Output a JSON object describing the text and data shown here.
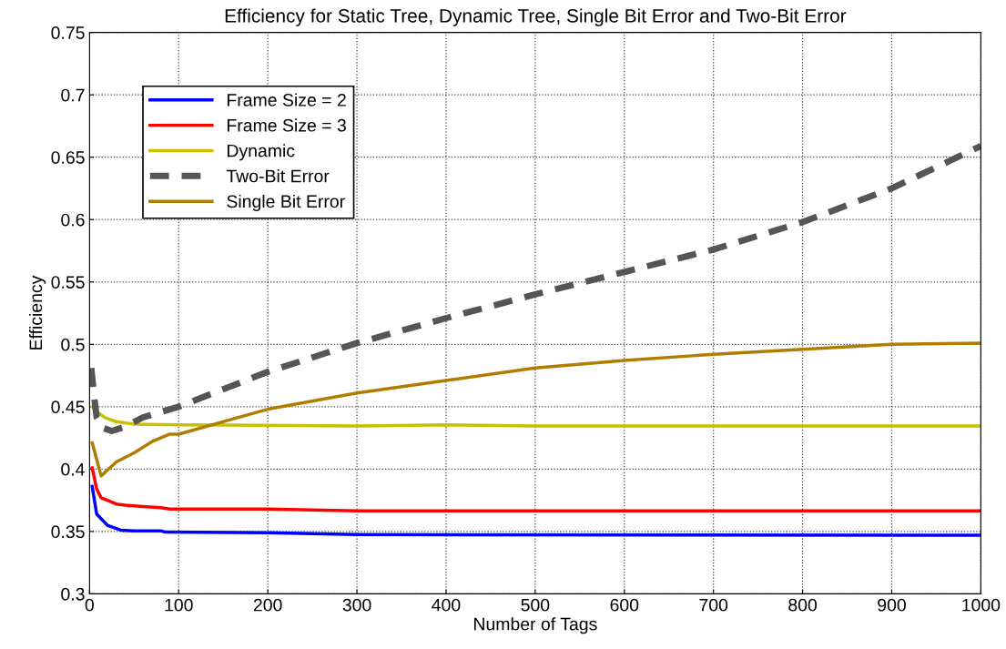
{
  "chart_data": {
    "type": "line",
    "title": "Efficiency for Static Tree, Dynamic Tree, Single Bit Error and Two-Bit Error",
    "xlabel": "Number of Tags",
    "ylabel": "Efficiency",
    "xlim": [
      0,
      1000
    ],
    "ylim": [
      0.3,
      0.75
    ],
    "xticks": [
      0,
      100,
      200,
      300,
      400,
      500,
      600,
      700,
      800,
      900,
      1000
    ],
    "yticks": [
      0.3,
      0.35,
      0.4,
      0.45,
      0.5,
      0.55,
      0.6,
      0.65,
      0.7,
      0.75
    ],
    "grid": true,
    "legend": "top left",
    "series": [
      {
        "name": "Frame Size = 2",
        "color": "#0000ff",
        "line_style": "solid",
        "x": [
          3,
          8,
          20,
          35,
          50,
          80,
          85,
          200,
          300,
          1000
        ],
        "values": [
          0.386,
          0.364,
          0.355,
          0.351,
          0.3505,
          0.3505,
          0.3495,
          0.349,
          0.3475,
          0.347
        ]
      },
      {
        "name": "Frame Size = 3",
        "color": "#ff0000",
        "line_style": "solid",
        "x": [
          3,
          8,
          13,
          20,
          30,
          40,
          60,
          80,
          90,
          200,
          300,
          1000
        ],
        "values": [
          0.401,
          0.384,
          0.377,
          0.375,
          0.372,
          0.371,
          0.37,
          0.369,
          0.368,
          0.368,
          0.3665,
          0.3665
        ]
      },
      {
        "name": "Dynamic",
        "color": "#c8c000",
        "line_style": "solid",
        "x": [
          3,
          7,
          18,
          30,
          50,
          100,
          300,
          400,
          500,
          1000
        ],
        "values": [
          0.45,
          0.4465,
          0.441,
          0.438,
          0.436,
          0.4355,
          0.4345,
          0.4355,
          0.4345,
          0.4345
        ]
      },
      {
        "name": "Two-Bit Error",
        "color": "#555555",
        "line_style": "dashed",
        "x": [
          2,
          5,
          8,
          15,
          25,
          40,
          60,
          100,
          200,
          300,
          400,
          500,
          600,
          700,
          800,
          900,
          1000
        ],
        "values": [
          0.481,
          0.459,
          0.4415,
          0.433,
          0.4305,
          0.434,
          0.4415,
          0.45,
          0.478,
          0.501,
          0.521,
          0.54,
          0.558,
          0.576,
          0.598,
          0.625,
          0.659
        ]
      },
      {
        "name": "Single Bit Error",
        "color": "#b07d00",
        "line_style": "solid",
        "x": [
          3,
          13,
          30,
          50,
          70,
          90,
          100,
          200,
          300,
          400,
          500,
          600,
          700,
          800,
          900,
          1000
        ],
        "values": [
          0.421,
          0.3945,
          0.4057,
          0.413,
          0.422,
          0.428,
          0.428,
          0.448,
          0.461,
          0.471,
          0.481,
          0.487,
          0.492,
          0.496,
          0.5,
          0.501
        ]
      }
    ]
  }
}
